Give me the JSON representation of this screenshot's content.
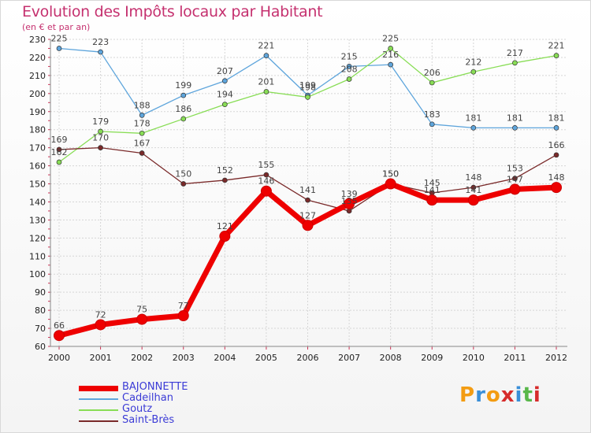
{
  "chart_data": {
    "type": "line",
    "title": "Evolution des Impôts locaux par Habitant",
    "subtitle": "(en € et par an)",
    "xlabel": "",
    "ylabel": "",
    "x": [
      "2000",
      "2001",
      "2002",
      "2003",
      "2004",
      "2005",
      "2006",
      "2007",
      "2008",
      "2009",
      "2010",
      "2011",
      "2012"
    ],
    "ylim": [
      60,
      230
    ],
    "yticks": [
      60,
      70,
      80,
      90,
      100,
      110,
      120,
      130,
      140,
      150,
      160,
      170,
      180,
      190,
      200,
      210,
      220,
      230
    ],
    "grid": true,
    "legend_position": "bottom-left",
    "series": [
      {
        "name": "BAJONNETTE",
        "color": "#ee0000",
        "values": [
          66,
          72,
          75,
          77,
          121,
          146,
          127,
          139,
          150,
          141,
          141,
          147,
          148
        ],
        "labels": [
          "66",
          "72",
          "75",
          "77",
          "121",
          "146",
          "127",
          "139",
          "150",
          "141",
          "141",
          "147",
          "148"
        ]
      },
      {
        "name": "Cadeilhan",
        "color": "#5ea5dc",
        "values": [
          225,
          223,
          188,
          199,
          207,
          221,
          199,
          215,
          216,
          183,
          181,
          181,
          181
        ],
        "labels": [
          "225",
          "223",
          "188",
          "199",
          "207",
          "221",
          "199",
          "215",
          "216",
          "183",
          "181",
          "181",
          "181"
        ]
      },
      {
        "name": "Goutz",
        "color": "#88dd55",
        "values": [
          162,
          179,
          178,
          186,
          194,
          201,
          198,
          208,
          225,
          206,
          212,
          217,
          221
        ],
        "labels": [
          "162",
          "179",
          "178",
          "186",
          "194",
          "201",
          "198",
          "208",
          "225",
          "206",
          "212",
          "217",
          "221"
        ]
      },
      {
        "name": "Saint-Brès",
        "color": "#7a2a2a",
        "values": [
          169,
          170,
          167,
          150,
          152,
          155,
          141,
          135,
          150,
          145,
          148,
          153,
          166
        ],
        "labels": [
          "169",
          "170",
          "167",
          "150",
          "152",
          "155",
          "141",
          "135",
          "150",
          "145",
          "148",
          "153",
          "166"
        ]
      }
    ]
  },
  "logo": {
    "letters": [
      "P",
      "r",
      "o",
      "x",
      "i",
      "t",
      "i"
    ],
    "colors": [
      "#f39c12",
      "#3a8fd8",
      "#f39c12",
      "#d62b2b",
      "#3a8fd8",
      "#58b74a",
      "#d62b2b"
    ]
  }
}
